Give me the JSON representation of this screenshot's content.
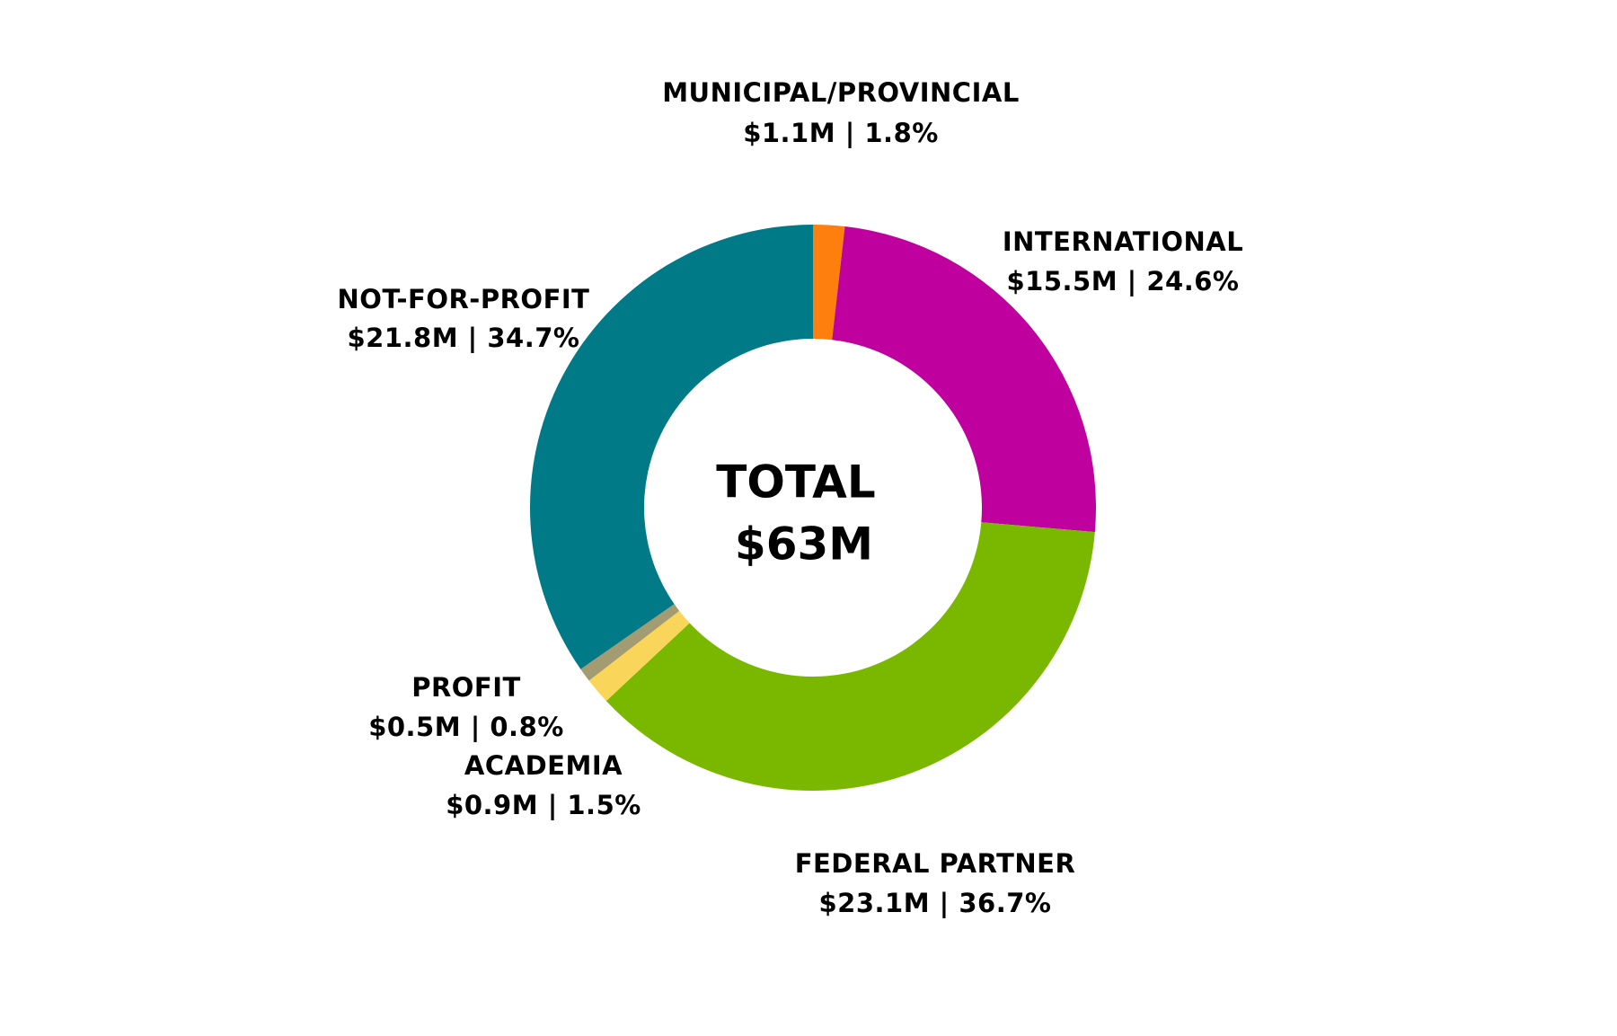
{
  "chart_data": {
    "type": "donut",
    "center_text": [
      "TOTAL",
      "$63M"
    ],
    "categories": [
      "MUNICIPAL/PROVINCIAL",
      "INTERNATIONAL",
      "FEDERAL PARTNER",
      "ACADEMIA",
      "PROFIT",
      "NOT-FOR-PROFIT"
    ],
    "values": [
      1.8,
      24.6,
      36.7,
      1.5,
      0.8,
      34.7
    ],
    "value_labels": [
      "$1.1M | 1.8%",
      "$15.5M | 24.6%",
      "$23.1M | 36.7%",
      "$0.9M | 1.5%",
      "$0.5M | 0.8%",
      "$21.8M | 34.7%"
    ],
    "colors": [
      "#ff7f0e",
      "#c0009e",
      "#7ab800",
      "#f9d55a",
      "#a39b72",
      "#007a87"
    ]
  }
}
